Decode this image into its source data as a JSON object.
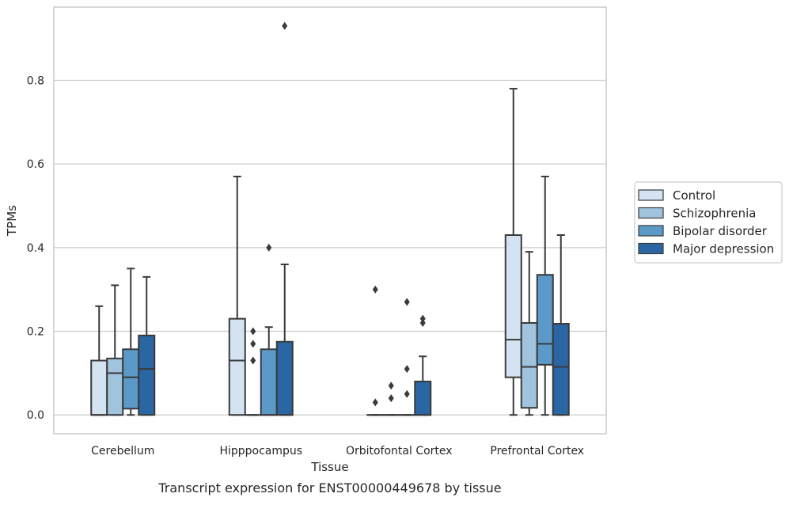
{
  "chart_data": {
    "type": "box",
    "title": "",
    "caption": "Transcript expression for ENST00000449678 by tissue",
    "xlabel": "Tissue",
    "ylabel": "TPMs",
    "ylim": [
      -0.045,
      0.975
    ],
    "yticks": [
      0.0,
      0.2,
      0.4,
      0.6,
      0.8
    ],
    "ytick_labels": [
      "0.0",
      "0.2",
      "0.4",
      "0.6",
      "0.8"
    ],
    "grid": "horizontal",
    "legend_position": "right",
    "categories": [
      "Cerebellum",
      "Hipppocampus",
      "Orbitofontal Cortex",
      "Prefrontal Cortex"
    ],
    "series": [
      {
        "name": "Control",
        "color": "#d3e3f1",
        "boxes": [
          {
            "whislo": 0.0,
            "q1": 0.0,
            "med": 0.0,
            "q3": 0.13,
            "whishi": 0.26,
            "fliers": []
          },
          {
            "whislo": 0.0,
            "q1": 0.0,
            "med": 0.13,
            "q3": 0.23,
            "whishi": 0.57,
            "fliers": []
          },
          {
            "whislo": 0.0,
            "q1": 0.0,
            "med": 0.0,
            "q3": 0.0,
            "whishi": 0.0,
            "fliers": [
              0.03,
              0.3
            ]
          },
          {
            "whislo": 0.0,
            "q1": 0.09,
            "med": 0.18,
            "q3": 0.43,
            "whishi": 0.78,
            "fliers": []
          }
        ]
      },
      {
        "name": "Schizophrenia",
        "color": "#a0c4de",
        "boxes": [
          {
            "whislo": 0.0,
            "q1": 0.0,
            "med": 0.1,
            "q3": 0.135,
            "whishi": 0.31,
            "fliers": []
          },
          {
            "whislo": 0.0,
            "q1": 0.0,
            "med": 0.0,
            "q3": 0.0,
            "whishi": 0.0,
            "fliers": [
              0.13,
              0.17,
              0.2
            ]
          },
          {
            "whislo": 0.0,
            "q1": 0.0,
            "med": 0.0,
            "q3": 0.0,
            "whishi": 0.0,
            "fliers": [
              0.04,
              0.07
            ]
          },
          {
            "whislo": 0.0,
            "q1": 0.017,
            "med": 0.115,
            "q3": 0.22,
            "whishi": 0.39,
            "fliers": []
          }
        ]
      },
      {
        "name": "Bipolar disorder",
        "color": "#5b9ac8",
        "boxes": [
          {
            "whislo": 0.0,
            "q1": 0.015,
            "med": 0.09,
            "q3": 0.157,
            "whishi": 0.35,
            "fliers": []
          },
          {
            "whislo": 0.0,
            "q1": 0.0,
            "med": 0.0,
            "q3": 0.157,
            "whishi": 0.21,
            "fliers": [
              0.4
            ]
          },
          {
            "whislo": 0.0,
            "q1": 0.0,
            "med": 0.0,
            "q3": 0.0,
            "whishi": 0.0,
            "fliers": [
              0.05,
              0.11,
              0.27
            ]
          },
          {
            "whislo": 0.0,
            "q1": 0.12,
            "med": 0.17,
            "q3": 0.335,
            "whishi": 0.57,
            "fliers": []
          }
        ]
      },
      {
        "name": "Major depression",
        "color": "#2a66a4",
        "boxes": [
          {
            "whislo": 0.0,
            "q1": 0.0,
            "med": 0.11,
            "q3": 0.19,
            "whishi": 0.33,
            "fliers": []
          },
          {
            "whislo": 0.0,
            "q1": 0.0,
            "med": 0.0,
            "q3": 0.175,
            "whishi": 0.36,
            "fliers": [
              0.93
            ]
          },
          {
            "whislo": 0.0,
            "q1": 0.0,
            "med": 0.0,
            "q3": 0.08,
            "whishi": 0.14,
            "fliers": [
              0.22,
              0.23
            ]
          },
          {
            "whislo": 0.0,
            "q1": 0.0,
            "med": 0.115,
            "q3": 0.218,
            "whishi": 0.43,
            "fliers": []
          }
        ]
      }
    ]
  }
}
